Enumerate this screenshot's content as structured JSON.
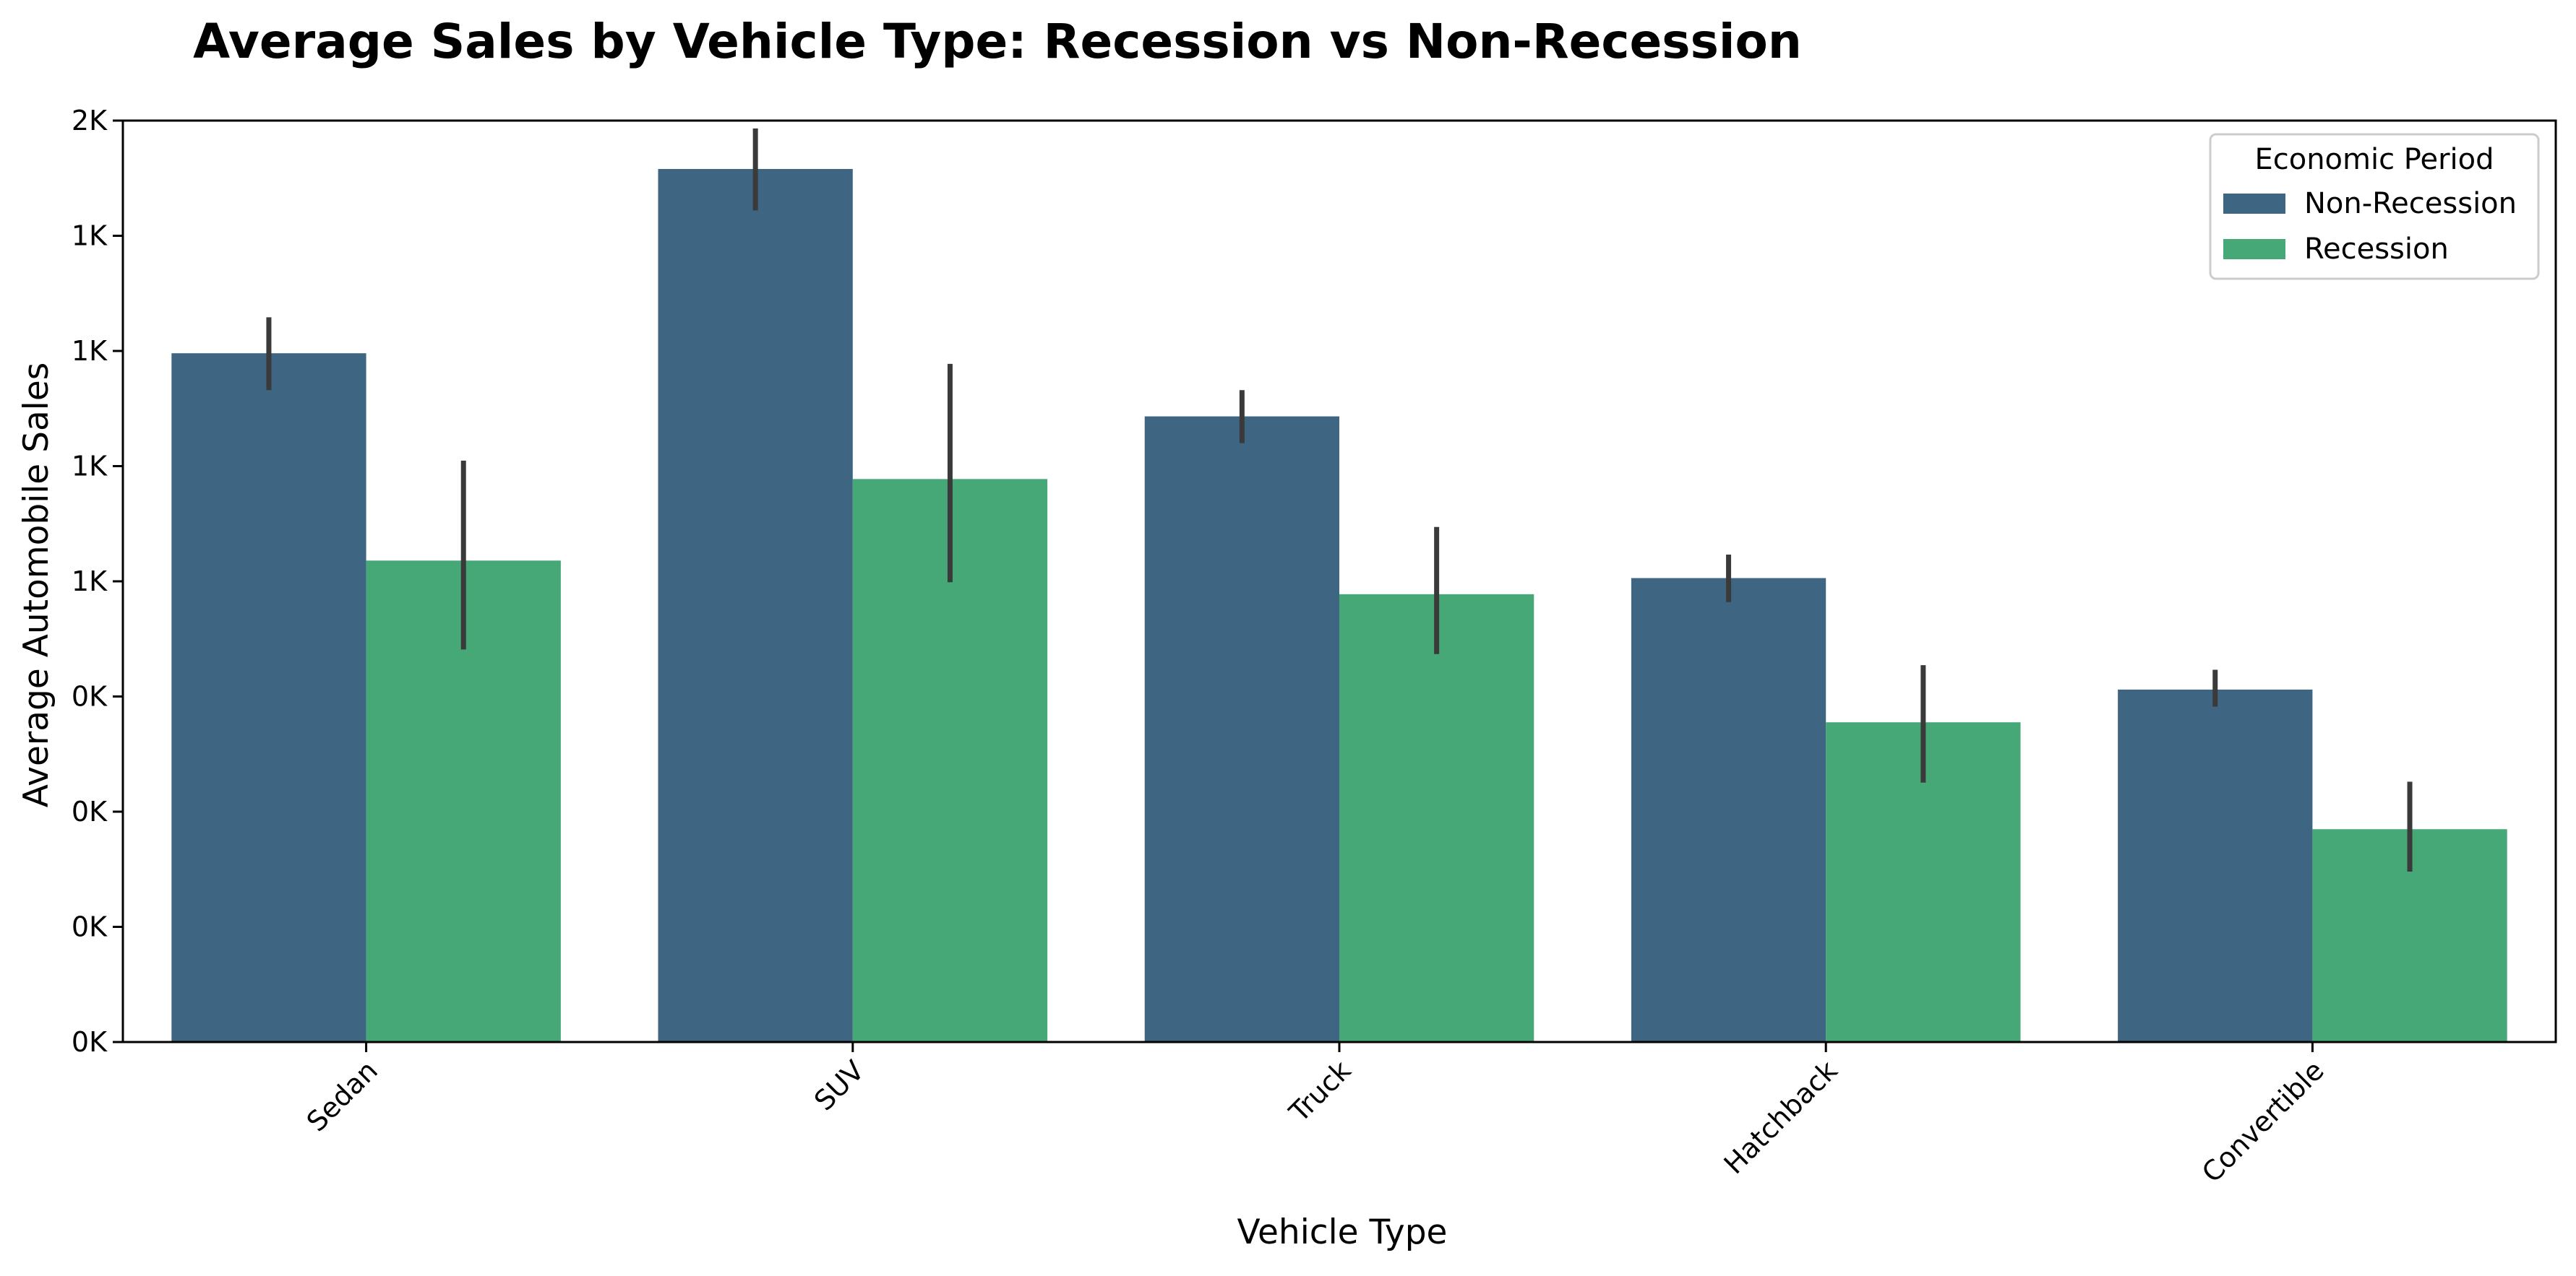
{
  "chart_data": {
    "type": "bar",
    "title": "Average Sales by Vehicle Type: Recession vs Non-Recession",
    "xlabel": "Vehicle Type",
    "ylabel": "Average Automobile Sales",
    "categories": [
      "Sedan",
      "SUV",
      "Truck",
      "Hatchback",
      "Convertible"
    ],
    "ytick_labels": [
      "0K",
      "0K",
      "0K",
      "0K",
      "1K",
      "1K",
      "1K",
      "1K",
      "2K"
    ],
    "ylim": [
      0,
      2000
    ],
    "ytick_values": [
      0,
      250,
      500,
      750,
      1000,
      1250,
      1500,
      1750,
      2000
    ],
    "grid": false,
    "legend": {
      "title": "Economic Period",
      "placement": "top-right"
    },
    "series": [
      {
        "name": "Non-Recession",
        "color": "#3e6581",
        "values": [
          1495,
          1895,
          1358,
          1007,
          765
        ],
        "error_low": [
          1415,
          1805,
          1300,
          955,
          728
        ],
        "error_high": [
          1573,
          1983,
          1415,
          1058,
          808
        ]
      },
      {
        "name": "Recession",
        "color": "#46a877",
        "values": [
          1045,
          1222,
          972,
          694,
          462
        ],
        "error_low": [
          852,
          998,
          842,
          563,
          370
        ],
        "error_high": [
          1262,
          1472,
          1118,
          818,
          565
        ]
      }
    ],
    "errorbar_color": "#3a3a3a"
  }
}
